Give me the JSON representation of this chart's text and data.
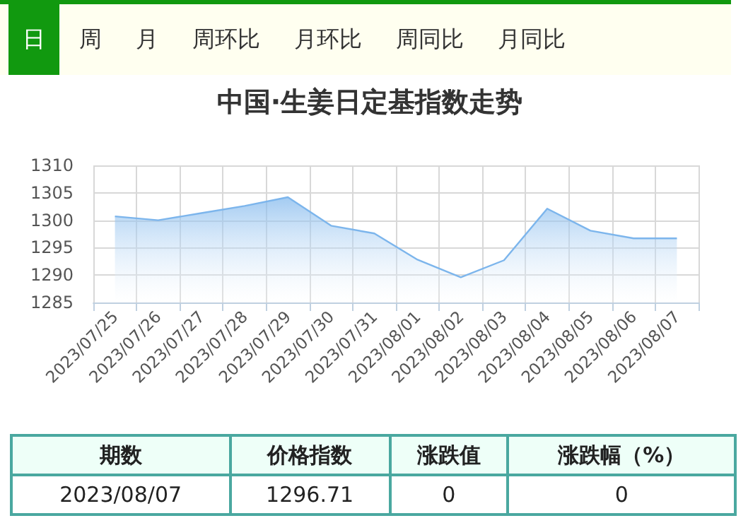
{
  "chart_data": [
    {
      "type": "area",
      "title": "中国·生姜日定基指数走势",
      "annotations": [
        "日",
        "周",
        "月",
        "周环比",
        "月环比",
        "周同比",
        "月同比"
      ],
      "categories": [
        "2023/07/25",
        "2023/07/26",
        "2023/07/27",
        "2023/07/28",
        "2023/07/29",
        "2023/07/30",
        "2023/07/31",
        "2023/08/01",
        "2023/08/02",
        "2023/08/03",
        "2023/08/04",
        "2023/08/05",
        "2023/08/06",
        "2023/08/07"
      ],
      "values": [
        1300.7,
        1300,
        1301.3,
        1302.6,
        1304.2,
        1299,
        1297.6,
        1292.8,
        1289.6,
        1292.7,
        1302.1,
        1298.1,
        1296.7,
        1296.7
      ],
      "color": "#7cb5ec",
      "ylim": [
        1285,
        1310
      ],
      "yticks": [
        1285,
        1290,
        1295,
        1300,
        1305,
        1310
      ],
      "grid": true,
      "marker": "none"
    },
    {
      "type": "other",
      "annotations": [
        "期数",
        "价格指数",
        "涨跌值",
        "涨跌幅（%）",
        "2023/08/07",
        "1296.71",
        "0",
        "0"
      ]
    }
  ]
}
